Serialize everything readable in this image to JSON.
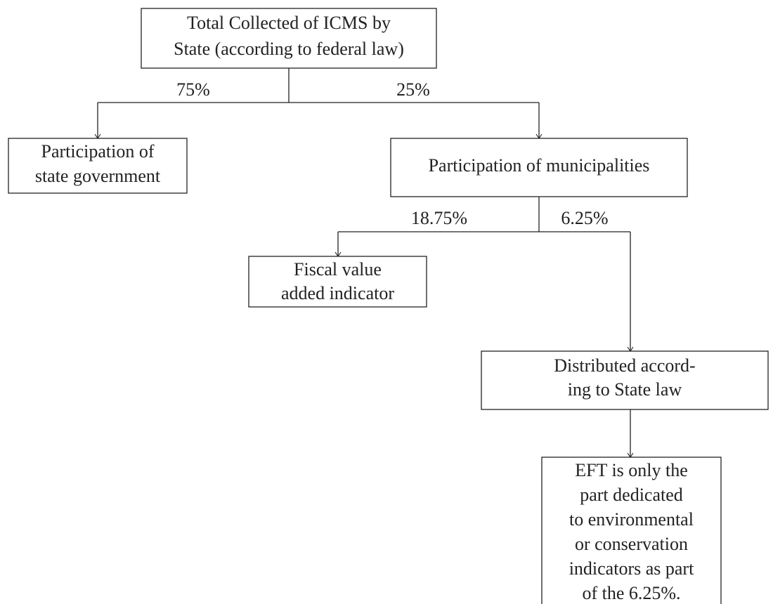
{
  "nodes": [
    {
      "lines": [
        "Total Collected of ICMS by",
        "State (according to federal law)"
      ]
    },
    {
      "lines": [
        "Participation of",
        "state government"
      ]
    },
    {
      "lines": [
        "Participation of municipalities"
      ]
    },
    {
      "lines": [
        "Fiscal value",
        "added indicator"
      ]
    },
    {
      "lines": [
        "Distributed accord-",
        "ing to State law"
      ]
    },
    {
      "lines": [
        "EFT is only the",
        "part dedicated",
        "to environmental",
        "or conservation",
        "indicators as part",
        "of the 6.25%."
      ]
    }
  ],
  "edges": [
    {
      "label": "75%"
    },
    {
      "label": "25%"
    },
    {
      "label": "18.75%"
    },
    {
      "label": "6.25%"
    }
  ]
}
